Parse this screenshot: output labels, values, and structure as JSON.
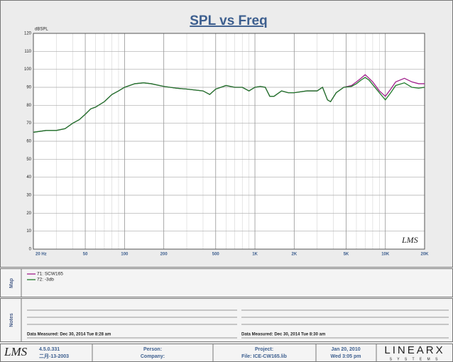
{
  "chart_data": {
    "type": "line",
    "title": "SPL vs Freq",
    "ylabel": "dBSPL",
    "watermark": "LMS",
    "x": [
      20,
      25,
      30,
      35,
      40,
      45,
      50,
      55,
      60,
      70,
      80,
      90,
      100,
      120,
      140,
      160,
      200,
      250,
      300,
      400,
      450,
      500,
      600,
      700,
      800,
      900,
      1000,
      1100,
      1200,
      1300,
      1400,
      1600,
      1800,
      2000,
      2500,
      3000,
      3300,
      3600,
      3800,
      4200,
      4800,
      5500,
      6000,
      6500,
      7000,
      7500,
      8000,
      9000,
      10000,
      11000,
      12000,
      14000,
      16000,
      18000,
      20000
    ],
    "series": [
      {
        "name": "71: SCW165",
        "color": "#a0208c",
        "values": [
          65,
          66,
          66,
          67,
          70,
          72,
          75,
          78,
          79,
          82,
          86,
          88,
          90,
          92,
          92.5,
          92,
          90.5,
          89.5,
          89,
          88,
          86,
          89,
          91,
          90,
          90,
          88,
          90,
          90.5,
          90,
          85,
          85,
          88,
          87,
          87,
          88,
          88,
          90,
          83,
          82,
          87,
          90,
          91,
          93,
          95,
          97,
          95,
          93,
          88,
          85,
          89,
          93,
          95,
          93,
          92,
          92
        ]
      },
      {
        "name": "72: -3db",
        "color": "#1f7a2a",
        "values": [
          65,
          66,
          66,
          67,
          70,
          72,
          75,
          78,
          79,
          82,
          86,
          88,
          90,
          92,
          92.5,
          92,
          90.5,
          89.5,
          89,
          88,
          86,
          89,
          91,
          90,
          90,
          88,
          90,
          90.5,
          90,
          85,
          85,
          88,
          87,
          87,
          88,
          88,
          90,
          83,
          82,
          87,
          90,
          90.5,
          92,
          94,
          95.5,
          94,
          91.5,
          87,
          83,
          87,
          91,
          92.5,
          90,
          89.5,
          90
        ]
      }
    ],
    "xlim": [
      20,
      20000
    ],
    "log_x": true,
    "minor_grid": true,
    "xticks": [
      {
        "value": 20,
        "label": "20 Hz"
      },
      50,
      100,
      200,
      500,
      {
        "value": 1000,
        "label": "1K"
      },
      {
        "value": 2000,
        "label": "2K"
      },
      {
        "value": 5000,
        "label": "5K"
      },
      {
        "value": 10000,
        "label": "10K"
      },
      {
        "value": 20000,
        "label": "20K"
      }
    ],
    "ylim": [
      0,
      120
    ],
    "yticks": [
      0,
      10,
      20,
      30,
      40,
      50,
      60,
      70,
      80,
      90,
      100,
      110,
      120
    ],
    "grid": true
  },
  "map": {
    "label": "Map"
  },
  "notes": {
    "label": "Notes",
    "left": "Data Measured: Dec 30, 2014  Tue  8:28 am",
    "right": "Data Measured: Dec 30, 2014  Tue  8:30 am"
  },
  "footer": {
    "logo": "LMS",
    "version": "4.5.0.331",
    "date": "二月-13-2003",
    "person": "Person:",
    "company": "Company:",
    "project": "Project:",
    "file": "File: ICE-CW165.lib",
    "print_date": "Jan 20, 2010",
    "print_time": "Wed  3:05 pm",
    "brand": "LINEARX",
    "brand_sub": "S Y S T E M S"
  }
}
